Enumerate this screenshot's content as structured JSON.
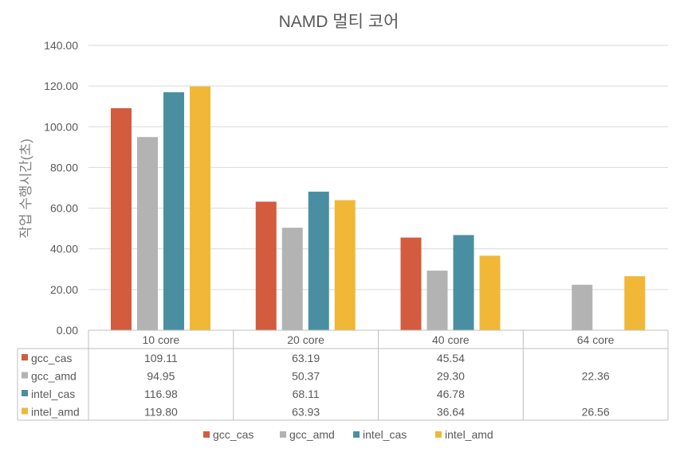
{
  "chart_data": {
    "type": "bar",
    "title": "NAMD 멀티 코어",
    "ylabel": "작업 수행시간(초)",
    "xlabel": "",
    "ylim": [
      0,
      140
    ],
    "yticks": [
      "0.00",
      "20.00",
      "40.00",
      "60.00",
      "80.00",
      "100.00",
      "120.00",
      "140.00"
    ],
    "grid": true,
    "legend_position": "bottom",
    "data_table": true,
    "categories": [
      "10 core",
      "20 core",
      "40 core",
      "64 core"
    ],
    "series": [
      {
        "name": "gcc_cas",
        "color": "#D35B3E",
        "values": [
          109.11,
          63.19,
          45.54,
          null
        ],
        "labels": [
          "109.11",
          "63.19",
          "45.54",
          ""
        ]
      },
      {
        "name": "gcc_amd",
        "color": "#B3B3B3",
        "values": [
          94.95,
          50.37,
          29.3,
          22.36
        ],
        "labels": [
          "94.95",
          "50.37",
          "29.30",
          "22.36"
        ]
      },
      {
        "name": "intel_cas",
        "color": "#4A8FA1",
        "values": [
          116.98,
          68.11,
          46.78,
          null
        ],
        "labels": [
          "116.98",
          "68.11",
          "46.78",
          ""
        ]
      },
      {
        "name": "intel_amd",
        "color": "#F0B836",
        "values": [
          119.8,
          63.93,
          36.64,
          26.56
        ],
        "labels": [
          "119.80",
          "63.93",
          "36.64",
          "26.56"
        ]
      }
    ]
  }
}
